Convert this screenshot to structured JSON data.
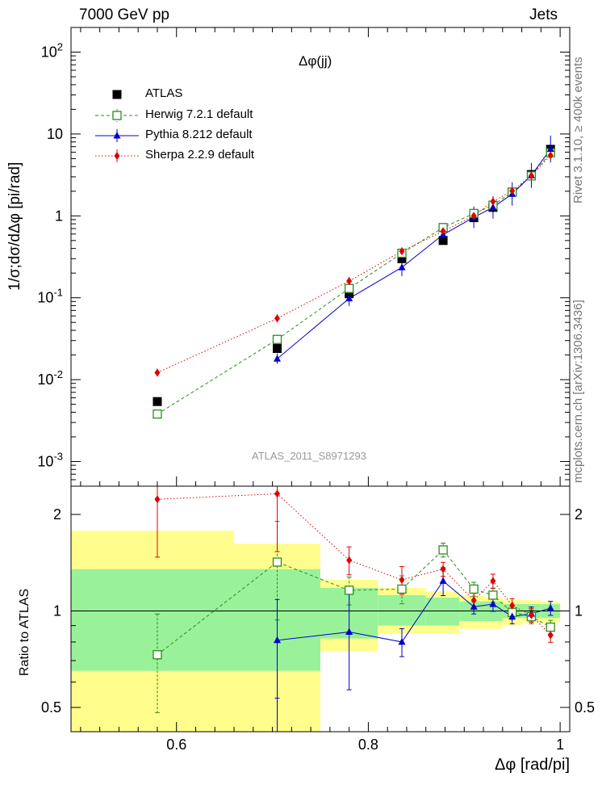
{
  "header": {
    "left": "7000 GeV pp",
    "right": "Jets"
  },
  "side_text": {
    "rivet": "Rivet 3.1.10, ≥ 400k events",
    "mcplots": "mcplots.cern.ch [arXiv:1306.3436]"
  },
  "annotations": {
    "observable": "Δφ(jj)",
    "analysis": "ATLAS_2011_S8971293"
  },
  "chart_data": [
    {
      "type": "scatter",
      "title": "Δφ(jj)",
      "xlabel": "Δφ [rad/pi]",
      "ylabel": "1/σ;dσ/dΔφ [pi/rad]",
      "xlim": [
        0.49,
        1.01
      ],
      "ylim": [
        0.0005,
        200
      ],
      "yscale": "log",
      "y_ticks": [
        "10^{-3}",
        "10^{-2}",
        "10^{-1}",
        "1",
        "10",
        "10^{2}"
      ],
      "legend_position": "top-left",
      "series": [
        {
          "name": "ATLAS",
          "color": "#000000",
          "marker": "square-filled",
          "x": [
            0.58,
            0.705,
            0.78,
            0.835,
            0.878,
            0.91,
            0.93,
            0.95,
            0.97,
            0.99
          ],
          "y": [
            0.0054,
            0.024,
            0.112,
            0.3,
            0.5,
            0.95,
            1.27,
            1.95,
            3.2,
            6.5
          ]
        },
        {
          "name": "Herwig 7.2.1 default",
          "color": "#2b8c1e",
          "marker": "square-open",
          "line": "dashed",
          "x": [
            0.58,
            0.705,
            0.78,
            0.835,
            0.878,
            0.91,
            0.93,
            0.95,
            0.97,
            0.99
          ],
          "y": [
            0.0038,
            0.031,
            0.13,
            0.35,
            0.72,
            1.07,
            1.35,
            1.95,
            3.08,
            5.9
          ]
        },
        {
          "name": "Pythia 8.212 default",
          "color": "#0000cc",
          "marker": "triangle-filled",
          "line": "solid",
          "x": [
            0.58,
            0.705,
            0.78,
            0.835,
            0.878,
            0.91,
            0.93,
            0.95,
            0.97,
            0.99
          ],
          "y": [
            null,
            0.018,
            0.098,
            0.235,
            0.59,
            0.96,
            1.27,
            1.85,
            3.12,
            6.55
          ]
        },
        {
          "name": "Sherpa 2.2.9 default",
          "color": "#e00000",
          "marker": "diamond-filled",
          "line": "dotted",
          "x": [
            0.58,
            0.705,
            0.78,
            0.835,
            0.878,
            0.91,
            0.93,
            0.95,
            0.97,
            0.99
          ],
          "y": [
            0.0122,
            0.056,
            0.16,
            0.37,
            0.65,
            1.0,
            1.5,
            2.02,
            3.1,
            5.5
          ]
        }
      ]
    },
    {
      "type": "scatter",
      "ylabel": "Ratio to ATLAS",
      "xlabel": "Δφ [rad/pi]",
      "xlim": [
        0.49,
        1.01
      ],
      "ylim": [
        0.42,
        2.45
      ],
      "yscale": "log",
      "x_ticks": [
        "0.6",
        "0.8",
        "1"
      ],
      "y_ticks": [
        "0.5",
        "1",
        "2"
      ],
      "uncertainty_bands": {
        "bin_edges": [
          0.49,
          0.66,
          0.75,
          0.81,
          0.86,
          0.895,
          0.92,
          0.94,
          0.96,
          0.98,
          1.0
        ],
        "stat_low": [
          0.65,
          0.65,
          0.82,
          0.9,
          0.9,
          0.93,
          0.93,
          0.95,
          0.95,
          0.95
        ],
        "stat_high": [
          1.35,
          1.35,
          1.18,
          1.12,
          1.1,
          1.07,
          1.07,
          1.05,
          1.05,
          1.05
        ],
        "total_low": [
          0.37,
          0.37,
          0.75,
          0.85,
          0.85,
          0.88,
          0.88,
          0.9,
          0.92,
          0.92
        ],
        "total_high": [
          1.78,
          1.62,
          1.25,
          1.18,
          1.15,
          1.12,
          1.1,
          1.08,
          1.08,
          1.07
        ],
        "stat_color": "#99f299",
        "total_color": "#fffe8c"
      },
      "series": [
        {
          "name": "Herwig 7.2.1 default",
          "color": "#2b8c1e",
          "x": [
            0.58,
            0.705,
            0.78,
            0.835,
            0.878,
            0.91,
            0.93,
            0.95,
            0.97,
            0.99
          ],
          "y": [
            0.73,
            1.42,
            1.16,
            1.17,
            1.55,
            1.17,
            1.12,
            0.99,
            0.96,
            0.89
          ]
        },
        {
          "name": "Pythia 8.212 default",
          "color": "#0000cc",
          "x": [
            0.705,
            0.78,
            0.835,
            0.878,
            0.91,
            0.93,
            0.95,
            0.97,
            0.99
          ],
          "y": [
            0.81,
            0.86,
            0.8,
            1.24,
            1.03,
            1.05,
            0.96,
            0.98,
            1.02
          ]
        },
        {
          "name": "Sherpa 2.2.9 default",
          "color": "#e00000",
          "x": [
            0.58,
            0.705,
            0.78,
            0.835,
            0.878,
            0.91,
            0.93,
            0.95,
            0.97,
            0.99
          ],
          "y": [
            2.23,
            2.32,
            1.44,
            1.25,
            1.35,
            1.08,
            1.24,
            1.04,
            0.97,
            0.84
          ]
        }
      ]
    }
  ]
}
